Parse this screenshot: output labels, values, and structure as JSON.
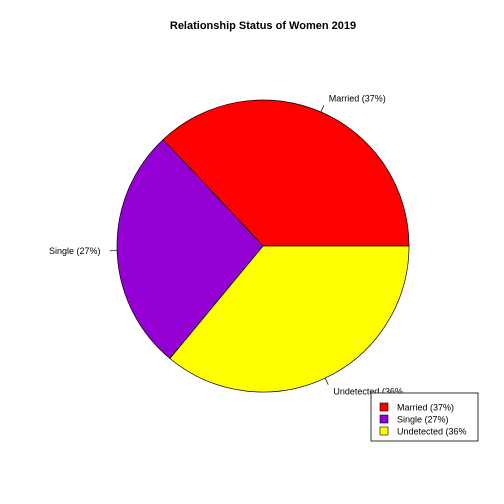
{
  "chart_data": {
    "type": "pie",
    "title": "Relationship Status of Women 2019",
    "slices": [
      {
        "label": "Married (37%)",
        "value": 37,
        "color": "#ff0000",
        "legend": "Married (37%)"
      },
      {
        "label": "Single (27%)",
        "value": 27,
        "color": "#9400d3",
        "legend": "Single (27%)"
      },
      {
        "label": "Undetected (36%",
        "value": 36,
        "color": "#ffff00",
        "legend": "Undetected (36%"
      }
    ],
    "legend_position": "bottom-right",
    "start": "right",
    "direction": "counterclockwise"
  }
}
